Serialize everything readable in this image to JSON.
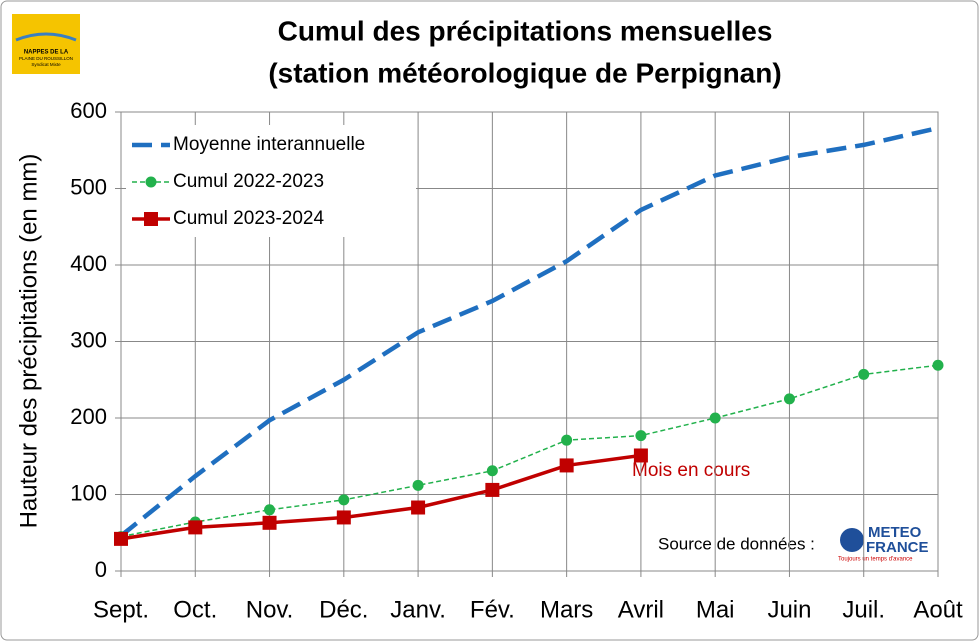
{
  "chart_data": {
    "type": "line",
    "title": "Cumul des précipitations mensuelles",
    "subtitle": "(station météorologique de Perpignan)",
    "y_label": "Hauteur des précipitations (en mm)",
    "categories": [
      "Sept.",
      "Oct.",
      "Nov.",
      "Déc.",
      "Janv.",
      "Fév.",
      "Mars",
      "Avril",
      "Mai",
      "Juin",
      "Juil.",
      "Août"
    ],
    "series": [
      {
        "name": "Moyenne interannuelle",
        "color": "#1f6fc0",
        "style": "dashed",
        "values": [
          46,
          124,
          197,
          250,
          312,
          353,
          405,
          472,
          517,
          541,
          557,
          579
        ]
      },
      {
        "name": "Cumul 2022-2023",
        "color": "#22b14c",
        "style": "dotted-circle",
        "values": [
          45,
          64,
          80,
          93,
          112,
          131,
          171,
          177,
          200,
          225,
          257,
          269
        ]
      },
      {
        "name": "Cumul 2023-2024",
        "color": "#c00000",
        "style": "solid-square",
        "values": [
          42,
          57,
          63,
          70,
          83,
          106,
          138,
          151,
          null,
          null,
          null,
          null
        ]
      }
    ],
    "ylim": [
      0,
      600
    ],
    "yticks": [
      0,
      100,
      200,
      300,
      400,
      500,
      600
    ],
    "grid": true,
    "legend": "top-left",
    "annotations": {
      "current": "Mois en cours",
      "source": "Source de données :"
    },
    "logos": {
      "meteo_1": "METEO",
      "meteo_2": "FRANCE",
      "meteo_tag": "Toujours un temps d'avance",
      "nappes_1": "NAPPES DE LA",
      "nappes_2": "PLAINE DU ROUSSILLON",
      "nappes_3": "Syndicat Mixte"
    }
  }
}
